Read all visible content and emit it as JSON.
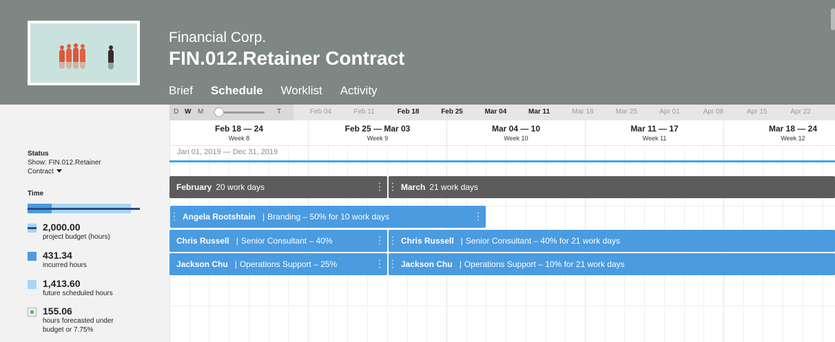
{
  "header": {
    "client": "Financial Corp.",
    "title": "FIN.012.Retainer Contract",
    "tabs": [
      {
        "label": "Brief"
      },
      {
        "label": "Schedule",
        "active": true
      },
      {
        "label": "Worklist"
      },
      {
        "label": "Activity"
      }
    ]
  },
  "sidebar": {
    "status_label": "Status",
    "status_value": "Show: FIN.012.Retainer Contract",
    "time_label": "Time",
    "time_bar": {
      "budget_hours": 2000,
      "incurred_hours": 431.34,
      "future_hours": 1413.6
    },
    "legend": [
      {
        "value": "2,000.00",
        "text": "project budget (hours)",
        "color": "#2a4b7a"
      },
      {
        "value": "431.34",
        "text": "incurred hours",
        "color": "#4a9be0"
      },
      {
        "value": "1,413.60",
        "text": "future scheduled hours",
        "color": "#a8d4f5"
      },
      {
        "value": "155.06",
        "text": "hours forecasted under budget or 7.75%",
        "color": "#5cb85c"
      }
    ]
  },
  "zoom": {
    "d": "D",
    "w": "W",
    "m": "M",
    "t": "T"
  },
  "week_strip": [
    {
      "label": "Feb 04",
      "strong": false
    },
    {
      "label": "Feb 11",
      "strong": false
    },
    {
      "label": "Feb 18",
      "strong": true
    },
    {
      "label": "Feb 25",
      "strong": true
    },
    {
      "label": "Mar 04",
      "strong": true
    },
    {
      "label": "Mar 11",
      "strong": true
    },
    {
      "label": "Mar 18",
      "strong": false
    },
    {
      "label": "Mar 25",
      "strong": false
    },
    {
      "label": "Apr 01",
      "strong": false
    },
    {
      "label": "Apr 08",
      "strong": false
    },
    {
      "label": "Apr 15",
      "strong": false
    },
    {
      "label": "Apr 22",
      "strong": false
    }
  ],
  "weeks": [
    {
      "range": "Feb 18 — 24",
      "week": "Week 8"
    },
    {
      "range": "Feb 25 — Mar 03",
      "week": "Week 9"
    },
    {
      "range": "Mar 04 — 10",
      "week": "Week 10"
    },
    {
      "range": "Mar 11 — 17",
      "week": "Week 11"
    },
    {
      "range": "Mar 18 — 24",
      "week": "Week 12"
    }
  ],
  "date_range": "Jan 01, 2019 — Dec 31, 2019",
  "months": [
    {
      "name": "February",
      "days": "20 work days"
    },
    {
      "name": "March",
      "days": "21 work days"
    }
  ],
  "assignments": [
    {
      "name": "Angela Rootshtain",
      "detail": "Branding – 50% for 10 work days"
    },
    {
      "name": "Chris Russell",
      "detail": "Senior Consultant – 40%"
    },
    {
      "name": "Chris Russell",
      "detail": "Senior Consultant – 40% for 21 work days"
    },
    {
      "name": "Jackson Chu",
      "detail": "Operations Support – 25%"
    },
    {
      "name": "Jackson Chu",
      "detail": "Operations Support – 10% for 21 work days"
    }
  ]
}
